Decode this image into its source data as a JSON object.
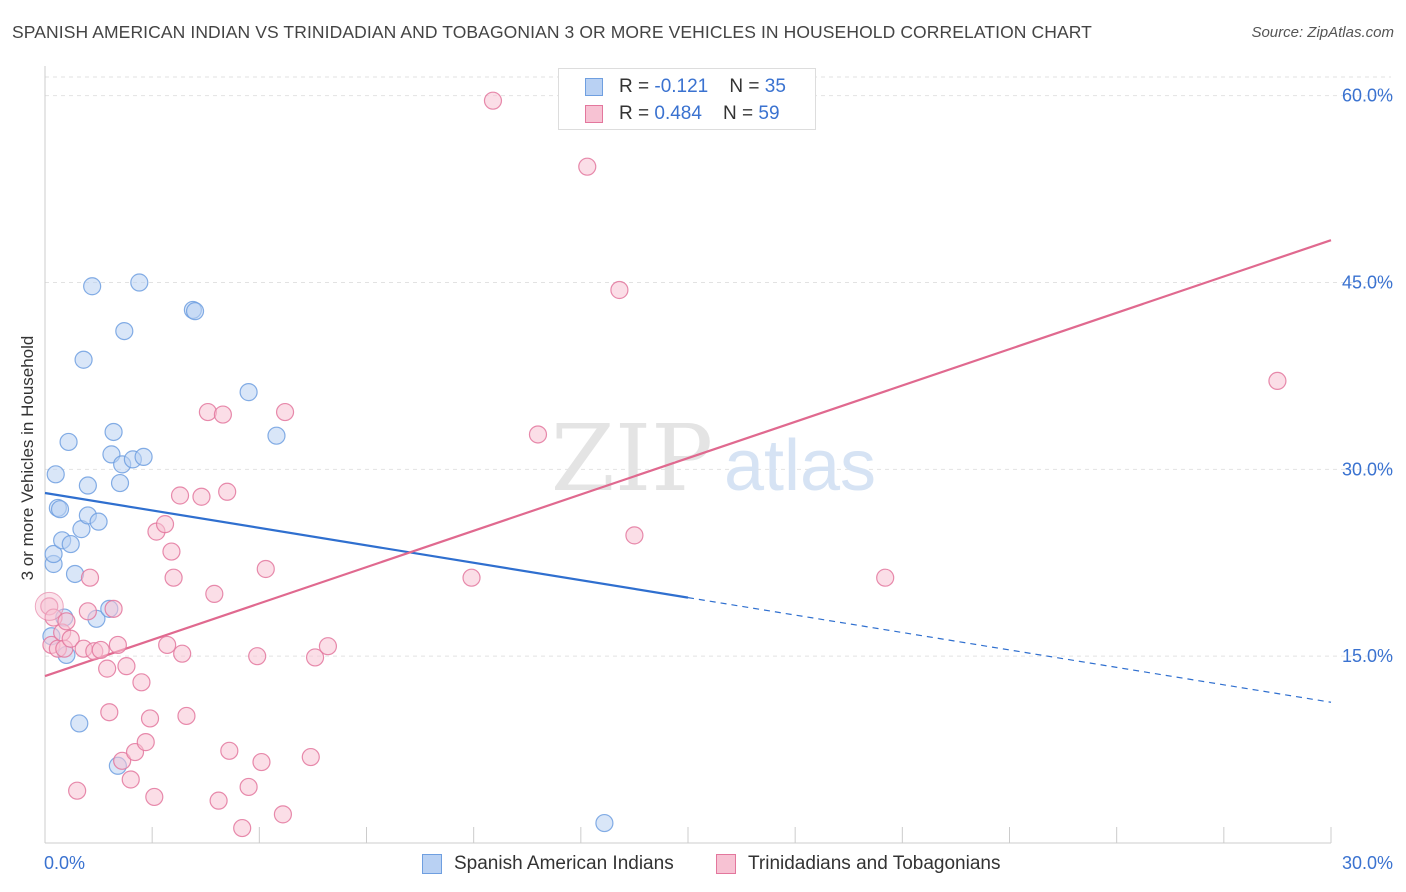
{
  "title": "SPANISH AMERICAN INDIAN VS TRINIDADIAN AND TOBAGONIAN 3 OR MORE VEHICLES IN HOUSEHOLD CORRELATION CHART",
  "source": "Source: ZipAtlas.com",
  "watermark": {
    "zip": "ZIP",
    "atlas": "atlas"
  },
  "legend_top": [
    {
      "r_label": "R = ",
      "r_value": "-0.121",
      "n_label": "N = ",
      "n_value": "35"
    },
    {
      "r_label": "R = ",
      "r_value": "0.484",
      "n_label": "N = ",
      "n_value": "59"
    }
  ],
  "chart_data": {
    "type": "scatter",
    "title": "SPANISH AMERICAN INDIAN VS TRINIDADIAN AND TOBAGONIAN 3 OR MORE VEHICLES IN HOUSEHOLD CORRELATION CHART",
    "xlabel": "",
    "ylabel": "3 or more Vehicles in Household",
    "xlim": [
      0,
      30
    ],
    "ylim": [
      0,
      61.5
    ],
    "x_tick_labels": [
      "0.0%",
      "30.0%"
    ],
    "y_ticks": [
      15,
      30,
      45,
      60
    ],
    "y_tick_labels": [
      "15.0%",
      "30.0%",
      "45.0%",
      "60.0%"
    ],
    "grid": true,
    "legend_position": "bottom",
    "series": [
      {
        "name": "Spanish American Indians",
        "color": "#6f9fe0",
        "fill": "#b9d1f3",
        "points": [
          [
            0.15,
            16.6
          ],
          [
            0.2,
            22.4
          ],
          [
            0.2,
            23.2
          ],
          [
            0.25,
            29.6
          ],
          [
            0.3,
            26.9
          ],
          [
            0.35,
            26.8
          ],
          [
            0.4,
            24.3
          ],
          [
            0.45,
            18.1
          ],
          [
            0.5,
            15.1
          ],
          [
            0.55,
            32.2
          ],
          [
            0.6,
            24.0
          ],
          [
            0.7,
            21.6
          ],
          [
            0.8,
            9.6
          ],
          [
            0.85,
            25.2
          ],
          [
            0.9,
            38.8
          ],
          [
            1.0,
            26.3
          ],
          [
            1.0,
            28.7
          ],
          [
            1.1,
            44.7
          ],
          [
            1.2,
            18.0
          ],
          [
            1.25,
            25.8
          ],
          [
            1.5,
            18.8
          ],
          [
            1.55,
            31.2
          ],
          [
            1.6,
            33.0
          ],
          [
            1.7,
            6.2
          ],
          [
            1.75,
            28.9
          ],
          [
            1.8,
            30.4
          ],
          [
            1.85,
            41.1
          ],
          [
            2.05,
            30.8
          ],
          [
            2.2,
            45.0
          ],
          [
            2.3,
            31.0
          ],
          [
            3.45,
            42.8
          ],
          [
            3.5,
            42.7
          ],
          [
            4.75,
            36.2
          ],
          [
            5.4,
            32.7
          ],
          [
            13.05,
            1.6
          ]
        ],
        "trend": {
          "x0": 0,
          "y0": 28.1,
          "x1": 15.0,
          "y1": 19.7,
          "dash_to_x": 30,
          "dash_to_y": 11.3
        }
      },
      {
        "name": "Trinidadians and Tobagonians",
        "color": "#e3779d",
        "fill": "#f7c2d3",
        "points": [
          [
            0.1,
            19.0
          ],
          [
            0.15,
            15.9
          ],
          [
            0.2,
            18.1
          ],
          [
            0.3,
            15.6
          ],
          [
            0.4,
            16.9
          ],
          [
            0.45,
            15.6
          ],
          [
            0.5,
            17.8
          ],
          [
            0.6,
            16.4
          ],
          [
            0.75,
            4.2
          ],
          [
            0.9,
            15.6
          ],
          [
            1.0,
            18.6
          ],
          [
            1.05,
            21.3
          ],
          [
            1.15,
            15.4
          ],
          [
            1.3,
            15.5
          ],
          [
            1.45,
            14.0
          ],
          [
            1.5,
            10.5
          ],
          [
            1.6,
            18.8
          ],
          [
            1.7,
            15.9
          ],
          [
            1.8,
            6.6
          ],
          [
            1.9,
            14.2
          ],
          [
            2.0,
            5.1
          ],
          [
            2.1,
            7.3
          ],
          [
            2.25,
            12.9
          ],
          [
            2.35,
            8.1
          ],
          [
            2.45,
            10.0
          ],
          [
            2.55,
            3.7
          ],
          [
            2.6,
            25.0
          ],
          [
            2.8,
            25.6
          ],
          [
            2.85,
            15.9
          ],
          [
            2.95,
            23.4
          ],
          [
            3.0,
            21.3
          ],
          [
            3.15,
            27.9
          ],
          [
            3.2,
            15.2
          ],
          [
            3.3,
            10.2
          ],
          [
            3.65,
            27.8
          ],
          [
            3.8,
            34.6
          ],
          [
            3.95,
            20.0
          ],
          [
            4.05,
            3.4
          ],
          [
            4.15,
            34.4
          ],
          [
            4.25,
            28.2
          ],
          [
            4.3,
            7.4
          ],
          [
            4.6,
            1.2
          ],
          [
            4.75,
            4.5
          ],
          [
            4.95,
            15.0
          ],
          [
            5.05,
            6.5
          ],
          [
            5.15,
            22.0
          ],
          [
            5.55,
            2.3
          ],
          [
            5.6,
            34.6
          ],
          [
            6.2,
            6.9
          ],
          [
            6.3,
            14.9
          ],
          [
            6.6,
            15.8
          ],
          [
            9.95,
            21.3
          ],
          [
            10.45,
            59.6
          ],
          [
            11.5,
            32.8
          ],
          [
            12.65,
            54.3
          ],
          [
            13.4,
            44.4
          ],
          [
            13.75,
            24.7
          ],
          [
            19.6,
            21.3
          ],
          [
            28.75,
            37.1
          ]
        ],
        "trend": {
          "x0": 0,
          "y0": 13.4,
          "x1": 30,
          "y1": 48.4
        }
      }
    ]
  }
}
